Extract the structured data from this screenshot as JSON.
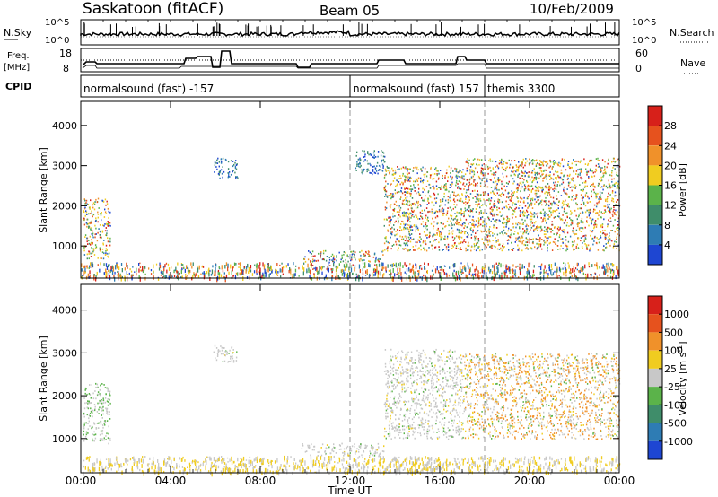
{
  "header": {
    "station": "Saskatoon (fitACF)",
    "beam": "Beam 05",
    "date": "10/Feb/2009"
  },
  "top_panels": {
    "nsky_label": "N.Sky",
    "nsearch_label": "N.Search",
    "nsky_ticks": [
      "10^5",
      "10^0"
    ],
    "nsearch_ticks": [
      "10^5",
      "10^0"
    ],
    "freq_label": [
      "Freq.",
      "[MHz]"
    ],
    "freq_ticks": [
      "18",
      "8"
    ],
    "nave_label": "Nave",
    "nave_ticks": [
      "60",
      "0"
    ],
    "cpid_label": "CPID",
    "cpid_segments": [
      {
        "label": "normalsound (fast) -157",
        "start_h": 0
      },
      {
        "label": "normalsound (fast) 157",
        "start_h": 12
      },
      {
        "label": "themis 3300",
        "start_h": 18
      }
    ]
  },
  "chart_data": [
    {
      "type": "heatmap",
      "name": "power",
      "ylabel": "Slant Range [km]",
      "yticks": [
        "1000",
        "2000",
        "3000",
        "4000"
      ],
      "ylim": [
        200,
        4600
      ],
      "xlim_h": [
        0,
        24
      ],
      "colorbar_label": "Power [dB]",
      "colorbar_ticks": [
        "4",
        "8",
        "12",
        "16",
        "20",
        "24",
        "28"
      ],
      "colors": [
        "#1e46d2",
        "#2e7cb4",
        "#3f8d6a",
        "#5bb34a",
        "#f0cc20",
        "#f0912a",
        "#e6521e",
        "#d7201a"
      ],
      "patches": [
        {
          "t": [
            0.1,
            1.3
          ],
          "r": [
            700,
            2200
          ],
          "kind": "mixed"
        },
        {
          "t": [
            5.9,
            7.0
          ],
          "r": [
            2700,
            3200
          ],
          "kind": "weak"
        },
        {
          "t": [
            9.8,
            13.5
          ],
          "r": [
            600,
            900
          ],
          "kind": "band"
        },
        {
          "t": [
            12.2,
            13.6
          ],
          "r": [
            2800,
            3400
          ],
          "kind": "weak"
        },
        {
          "t": [
            13.5,
            17.0
          ],
          "r": [
            900,
            3000
          ],
          "kind": "strong"
        },
        {
          "t": [
            17.0,
            24.0
          ],
          "r": [
            900,
            3200
          ],
          "kind": "strong"
        }
      ]
    },
    {
      "type": "heatmap",
      "name": "velocity",
      "ylabel": "Slant Range [km]",
      "yticks": [
        "1000",
        "2000",
        "3000",
        "4000"
      ],
      "ylim": [
        200,
        4600
      ],
      "xlim_h": [
        0,
        24
      ],
      "colorbar_label": "Velocity [m s",
      "colorbar_label_sup": "-1",
      "colorbar_label_close": "]",
      "colorbar_ticks": [
        "1000",
        "500",
        "100",
        "25",
        "-25",
        "-100",
        "-500",
        "-1000"
      ],
      "colors": [
        "#1e46d2",
        "#2e7cb4",
        "#3f8d6a",
        "#5bb34a",
        "#c8c8c8",
        "#f0cc20",
        "#f0912a",
        "#e6521e",
        "#d7201a"
      ],
      "patches": [
        {
          "t": [
            0.1,
            1.3
          ],
          "r": [
            900,
            2300
          ],
          "kind": "grey-green"
        },
        {
          "t": [
            5.9,
            7.0
          ],
          "r": [
            2800,
            3200
          ],
          "kind": "grey"
        },
        {
          "t": [
            9.8,
            13.5
          ],
          "r": [
            600,
            900
          ],
          "kind": "grey"
        },
        {
          "t": [
            13.5,
            17.0
          ],
          "r": [
            1000,
            3100
          ],
          "kind": "grey"
        },
        {
          "t": [
            17.0,
            24.0
          ],
          "r": [
            1000,
            3000
          ],
          "kind": "orange"
        }
      ]
    }
  ],
  "x_axis": {
    "ticks": [
      "00:00",
      "04:00",
      "08:00",
      "12:00",
      "16:00",
      "20:00",
      "00:00"
    ],
    "label": "Time UT"
  }
}
